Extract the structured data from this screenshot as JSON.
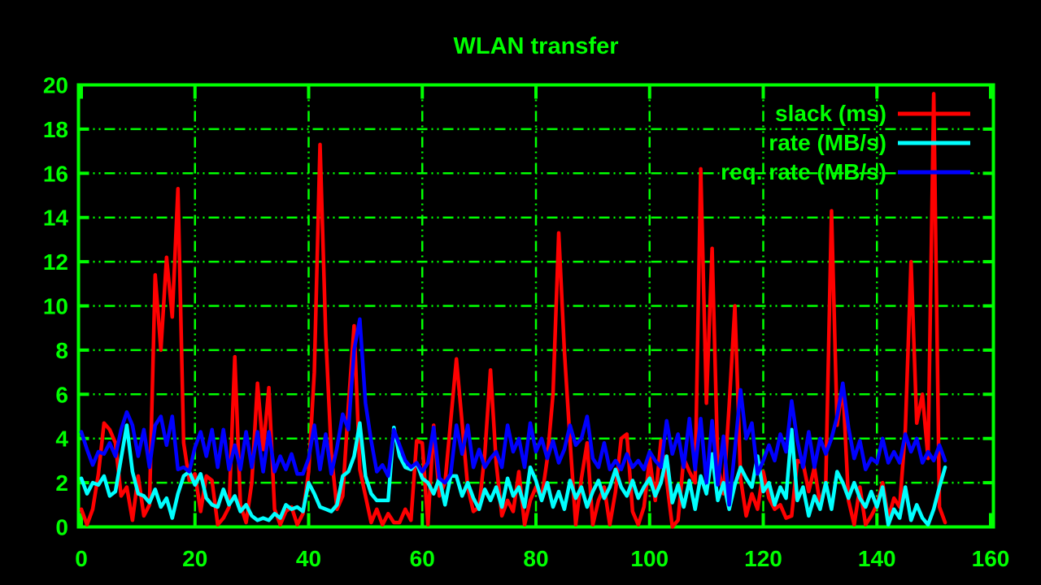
{
  "title": "WLAN transfer",
  "colors": {
    "background": "#000000",
    "axis_and_text": "#00ff00",
    "slack": "#ff0000",
    "rate": "#00ffff",
    "req_rate": "#0000ff"
  },
  "legend": {
    "position": "top-right-inside",
    "entries": [
      {
        "label": "slack (ms)",
        "color": "#ff0000"
      },
      {
        "label": "rate (MB/s)",
        "color": "#00ffff"
      },
      {
        "label": "req. rate (MB/s)",
        "color": "#0000ff"
      }
    ]
  },
  "chart_data": {
    "type": "line",
    "title": "WLAN transfer",
    "xlabel": "",
    "ylabel": "",
    "xlim": [
      0,
      160
    ],
    "ylim": [
      0,
      20
    ],
    "xticks": [
      0,
      20,
      40,
      60,
      80,
      100,
      120,
      140,
      160
    ],
    "yticks": [
      0,
      2,
      4,
      6,
      8,
      10,
      12,
      14,
      16,
      18,
      20
    ],
    "grid": true,
    "legend_position": "top-right",
    "x_start": 0,
    "x_step": 1,
    "series": [
      {
        "name": "slack (ms)",
        "color": "#ff0000",
        "values": [
          0.8,
          0.1,
          0.8,
          2.4,
          4.7,
          4.4,
          3.8,
          1.4,
          1.8,
          0.3,
          2.3,
          0.5,
          1.0,
          11.4,
          8.0,
          12.2,
          9.5,
          15.3,
          3.8,
          2.1,
          2.4,
          0.7,
          2.3,
          2.1,
          0.1,
          0.4,
          0.9,
          7.7,
          1.0,
          0.2,
          2.0,
          6.5,
          3.5,
          6.3,
          0.8,
          0.1,
          0.7,
          0.9,
          0.1,
          0.6,
          2.5,
          7.0,
          17.3,
          8.7,
          3.3,
          0.8,
          1.4,
          5.5,
          9.1,
          2.6,
          1.4,
          0.2,
          0.8,
          0.1,
          0.6,
          0.2,
          0.2,
          0.8,
          0.3,
          3.9,
          3.8,
          0.1,
          4.6,
          1.4,
          2.0,
          4.8,
          7.6,
          4.7,
          1.8,
          0.7,
          0.9,
          3.3,
          7.1,
          2.9,
          0.5,
          1.2,
          0.7,
          2.5,
          0.1,
          1.2,
          1.8,
          1.3,
          3.1,
          6.0,
          13.3,
          8.0,
          3.9,
          0.1,
          2.2,
          3.8,
          0.1,
          1.2,
          1.8,
          0.1,
          1.6,
          4.0,
          4.2,
          0.7,
          0.1,
          0.9,
          3.1,
          1.2,
          3.9,
          2.1,
          0.0,
          0.3,
          3.1,
          2.5,
          2.0,
          16.2,
          5.6,
          12.6,
          2.8,
          1.5,
          5.5,
          10.0,
          2.2,
          0.5,
          1.5,
          0.8,
          2.5,
          1.3,
          0.8,
          1.0,
          0.4,
          0.5,
          3.0,
          2.9,
          1.6,
          2.7,
          1.0,
          2.0,
          14.3,
          4.6,
          6.4,
          1.2,
          0.1,
          1.8,
          0.1,
          0.5,
          1.0,
          2.0,
          0.4,
          1.3,
          0.9,
          4.4,
          12.0,
          4.7,
          6.0,
          3.1,
          19.6,
          0.9,
          0.2
        ]
      },
      {
        "name": "rate (MB/s)",
        "color": "#00ffff",
        "values": [
          2.2,
          1.5,
          2.0,
          1.9,
          2.3,
          1.4,
          1.6,
          3.1,
          4.6,
          2.5,
          1.5,
          1.4,
          1.1,
          1.7,
          0.9,
          1.3,
          0.4,
          1.5,
          2.3,
          2.5,
          1.9,
          2.4,
          1.3,
          1.0,
          0.9,
          1.7,
          1.0,
          1.4,
          0.7,
          1.0,
          0.5,
          0.3,
          0.4,
          0.3,
          0.6,
          0.4,
          1.0,
          0.8,
          0.9,
          0.7,
          2.0,
          1.5,
          0.9,
          0.8,
          0.7,
          1.0,
          2.3,
          2.5,
          3.2,
          4.7,
          2.3,
          1.5,
          1.2,
          1.2,
          1.2,
          4.5,
          3.2,
          2.7,
          2.6,
          2.9,
          2.2,
          2.0,
          1.5,
          2.2,
          1.0,
          2.3,
          2.3,
          1.4,
          2.0,
          1.3,
          0.8,
          1.7,
          1.2,
          1.8,
          0.9,
          2.2,
          1.4,
          1.8,
          0.9,
          2.7,
          2.1,
          1.2,
          2.0,
          0.9,
          1.6,
          0.8,
          2.1,
          1.3,
          1.8,
          0.9,
          1.6,
          2.1,
          1.3,
          1.8,
          2.6,
          1.8,
          1.4,
          2.1,
          1.3,
          1.8,
          2.2,
          1.4,
          2.0,
          3.2,
          1.1,
          1.9,
          0.9,
          2.1,
          0.8,
          2.3,
          1.5,
          3.3,
          1.2,
          2.0,
          0.8,
          1.9,
          2.7,
          2.2,
          1.8,
          3.2,
          1.6,
          2.0,
          1.0,
          1.8,
          1.3,
          4.4,
          1.2,
          1.8,
          0.5,
          1.4,
          0.8,
          2.0,
          0.8,
          2.5,
          2.0,
          1.3,
          2.0,
          1.3,
          0.9,
          1.6,
          0.9,
          1.8,
          0.1,
          0.8,
          0.4,
          1.8,
          0.3,
          1.0,
          0.4,
          0.1,
          0.8,
          1.8,
          2.7
        ]
      },
      {
        "name": "req. rate (MB/s)",
        "color": "#0000ff",
        "values": [
          4.3,
          3.5,
          2.8,
          3.4,
          3.3,
          3.8,
          3.2,
          4.4,
          5.2,
          4.6,
          3.2,
          4.4,
          2.7,
          4.6,
          5.0,
          3.7,
          5.0,
          2.6,
          2.7,
          2.5,
          3.6,
          4.3,
          3.2,
          4.4,
          2.7,
          4.4,
          2.6,
          3.7,
          2.6,
          4.3,
          2.7,
          4.3,
          2.5,
          4.3,
          2.5,
          3.2,
          2.6,
          3.3,
          2.4,
          2.4,
          3.1,
          4.6,
          2.6,
          4.2,
          2.4,
          3.6,
          5.1,
          4.4,
          8.0,
          9.4,
          5.6,
          3.9,
          2.5,
          2.8,
          2.3,
          4.4,
          3.7,
          3.0,
          2.7,
          2.9,
          2.5,
          2.9,
          4.5,
          2.2,
          2.0,
          2.4,
          4.6,
          3.3,
          4.6,
          2.7,
          3.5,
          2.7,
          3.1,
          3.4,
          2.7,
          4.6,
          3.4,
          4.0,
          2.7,
          4.7,
          3.4,
          4.0,
          3.1,
          3.9,
          2.9,
          3.5,
          4.6,
          3.7,
          4.0,
          5.0,
          3.1,
          2.7,
          3.8,
          2.6,
          3.0,
          2.6,
          3.3,
          2.7,
          3.0,
          2.6,
          3.4,
          3.0,
          2.7,
          4.8,
          3.3,
          4.2,
          2.7,
          4.9,
          2.6,
          4.9,
          2.0,
          4.8,
          1.9,
          4.1,
          1.0,
          3.5,
          6.2,
          4.0,
          4.7,
          2.4,
          3.0,
          3.7,
          3.0,
          4.2,
          3.4,
          5.7,
          3.9,
          2.7,
          4.3,
          2.7,
          4.0,
          3.3,
          4.0,
          5.0,
          6.5,
          4.5,
          3.1,
          3.9,
          2.6,
          3.1,
          2.9,
          4.0,
          2.9,
          3.4,
          2.9,
          4.2,
          3.4,
          4.0,
          2.9,
          3.4,
          3.0,
          3.7,
          3.0
        ]
      }
    ]
  }
}
